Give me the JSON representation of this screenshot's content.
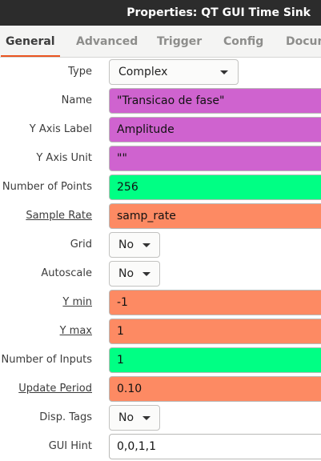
{
  "window": {
    "title": "Properties: QT GUI Time Sink"
  },
  "tabs": [
    {
      "label": "General"
    },
    {
      "label": "Advanced"
    },
    {
      "label": "Trigger"
    },
    {
      "label": "Config"
    },
    {
      "label": "Docum"
    }
  ],
  "properties": {
    "type": {
      "label": "Type",
      "value": "Complex"
    },
    "name": {
      "label": "Name",
      "value": "\"Transicao de fase\""
    },
    "y_axis_label": {
      "label": "Y Axis Label",
      "value": "Amplitude"
    },
    "y_axis_unit": {
      "label": "Y Axis Unit",
      "value": "\"\""
    },
    "number_of_points": {
      "label": "Number of Points",
      "value": "256"
    },
    "sample_rate": {
      "label": "Sample Rate",
      "value": "samp_rate"
    },
    "grid": {
      "label": "Grid",
      "value": "No"
    },
    "autoscale": {
      "label": "Autoscale",
      "value": "No"
    },
    "y_min": {
      "label": "Y min",
      "value": "-1"
    },
    "y_max": {
      "label": "Y max",
      "value": "1"
    },
    "number_of_inputs": {
      "label": "Number of Inputs",
      "value": "1"
    },
    "update_period": {
      "label": "Update Period",
      "value": "0.10"
    },
    "disp_tags": {
      "label": "Disp. Tags",
      "value": "No"
    },
    "gui_hint": {
      "label": "GUI Hint",
      "value": "0,0,1,1"
    }
  },
  "colors": {
    "titlebar": "#2c2c2c",
    "tab_accent": "#e95420",
    "string_field": "#cf63cf",
    "int_field": "#00ff84",
    "float_field": "#fd8a63",
    "hint_field": "#ffffff"
  },
  "icons": {
    "dropdown": "chevron-down-icon"
  }
}
